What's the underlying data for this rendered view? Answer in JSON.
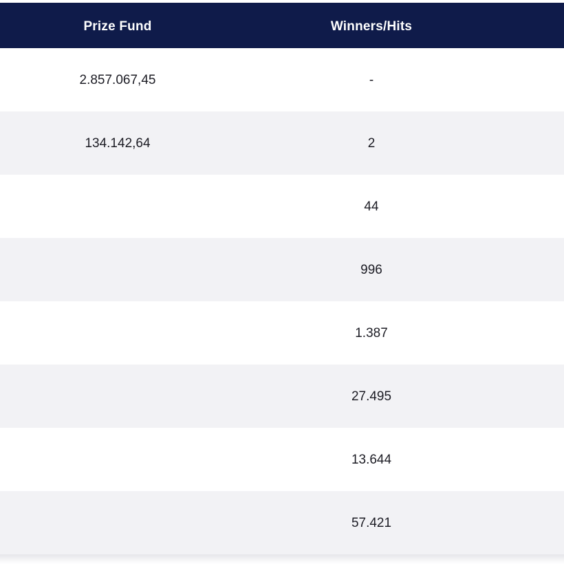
{
  "table": {
    "headers": {
      "prize_fund": "Prize Fund",
      "winners_hits": "Winners/Hits"
    },
    "rows": [
      {
        "prize_fund": "2.857.067,45",
        "winners_hits": "-"
      },
      {
        "prize_fund": "134.142,64",
        "winners_hits": "2"
      },
      {
        "prize_fund": "",
        "winners_hits": "44"
      },
      {
        "prize_fund": "",
        "winners_hits": "996"
      },
      {
        "prize_fund": "",
        "winners_hits": "1.387"
      },
      {
        "prize_fund": "",
        "winners_hits": "27.495"
      },
      {
        "prize_fund": "",
        "winners_hits": "13.644"
      },
      {
        "prize_fund": "",
        "winners_hits": "57.421"
      }
    ]
  },
  "colors": {
    "header_bg": "#0f1b4a",
    "header_text": "#ffffff",
    "row_alt_bg": "#f2f2f5",
    "text": "#1c1c24"
  }
}
